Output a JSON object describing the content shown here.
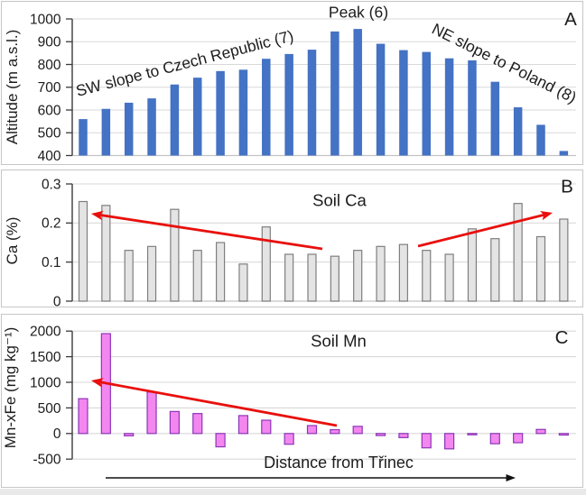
{
  "figure": {
    "background": "#ffffff",
    "panel_border_color": "#c6c6c6",
    "gridline_color": "#d9d9d9",
    "axis_line_color": "#3a3a3a",
    "trend_arrow_color": "#e8100c",
    "distance_arrow_color": "#111111"
  },
  "chart_data": [
    {
      "type": "bar",
      "panel_label": "A",
      "title": "",
      "xlabel": "",
      "ylabel": "Altitude (m a.s.l.)",
      "ylim": [
        400,
        1000
      ],
      "yticks": [
        400,
        500,
        600,
        700,
        800,
        900,
        1000
      ],
      "ytick_labels": [
        "400",
        "500",
        "600",
        "700",
        "800",
        "900",
        "1000"
      ],
      "grid": true,
      "bar_color": "#4472c4",
      "bar_border_color": "",
      "values": [
        560,
        605,
        632,
        651,
        712,
        742,
        771,
        777,
        825,
        846,
        865,
        945,
        956,
        891,
        863,
        855,
        827,
        818,
        724,
        612,
        535,
        420
      ],
      "annotations": [
        {
          "text": "SW slope to Czech Republic (7)",
          "rotation_deg": -14.5
        },
        {
          "text": "Peak (6)",
          "rotation_deg": 0
        },
        {
          "text": "NE slope to Poland (8)",
          "rotation_deg": 26.5
        }
      ]
    },
    {
      "type": "bar",
      "panel_label": "B",
      "title": "Soil Ca",
      "xlabel": "",
      "ylabel": "Ca (%)",
      "ylim": [
        0,
        0.3
      ],
      "yticks": [
        0,
        0.1,
        0.2,
        0.3
      ],
      "ytick_labels": [
        "0",
        "0.1",
        "0.2",
        "0.3"
      ],
      "grid": true,
      "bar_color": "#e4e4e4",
      "bar_border_color": "#7f7f7f",
      "values": [
        0.255,
        0.245,
        0.13,
        0.14,
        0.235,
        0.13,
        0.15,
        0.095,
        0.19,
        0.12,
        0.12,
        0.115,
        0.13,
        0.14,
        0.145,
        0.13,
        0.12,
        0.185,
        0.16,
        0.25,
        0.165,
        0.21
      ],
      "trend_arrows": [
        {
          "color": "#e8100c",
          "points_to": "upper-left"
        },
        {
          "color": "#e8100c",
          "points_to": "upper-right"
        }
      ]
    },
    {
      "type": "bar",
      "panel_label": "C",
      "title": "Soil Mn",
      "xlabel": "Distance from Třinec",
      "ylabel": "Mn-xFe (mg kg⁻¹)",
      "ylim": [
        -500,
        2000
      ],
      "yticks": [
        -500,
        0,
        500,
        1000,
        1500,
        2000
      ],
      "ytick_labels": [
        "-500",
        "0",
        "500",
        "1000",
        "1500",
        "2000"
      ],
      "grid": true,
      "bar_color": "#f387ef",
      "bar_border_color": "#8c36b8",
      "values": [
        680,
        1950,
        -45,
        810,
        430,
        390,
        -260,
        350,
        260,
        -210,
        155,
        75,
        140,
        -40,
        -80,
        -280,
        -300,
        -25,
        -200,
        -180,
        80,
        -30
      ],
      "trend_arrows": [
        {
          "color": "#e8100c",
          "points_to": "upper-left"
        }
      ],
      "x_direction_arrow": {
        "color": "#111111",
        "points_to": "right"
      }
    }
  ]
}
